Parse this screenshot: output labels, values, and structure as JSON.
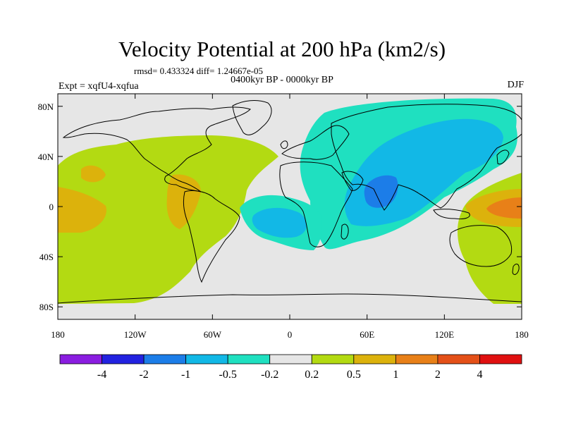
{
  "title": "Velocity Potential at 200 hPa (km2/s)",
  "stats": "rmsd= 0.433324 diff= 1.24667e-05",
  "subtitle": "0400kyr BP - 0000kyr BP",
  "left_label": "Expt = xqfU4-xqfua",
  "right_label": "DJF",
  "map": {
    "projection": "cylindrical equidistant",
    "lon_range": [
      -180,
      180
    ],
    "lat_range": [
      -90,
      90
    ],
    "lon_ticks": [
      {
        "value": -180,
        "label": "180"
      },
      {
        "value": -120,
        "label": "120W"
      },
      {
        "value": -60,
        "label": "60W"
      },
      {
        "value": 0,
        "label": "0"
      },
      {
        "value": 60,
        "label": "60E"
      },
      {
        "value": 120,
        "label": "120E"
      },
      {
        "value": 180,
        "label": "180"
      }
    ],
    "lat_ticks": [
      {
        "value": 80,
        "label": "80N"
      },
      {
        "value": 40,
        "label": "40N"
      },
      {
        "value": 0,
        "label": "0"
      },
      {
        "value": -40,
        "label": "40S"
      },
      {
        "value": -80,
        "label": "80S"
      }
    ],
    "background_color": "#e6e6e6",
    "coastline_color": "#000000"
  },
  "colorbar": {
    "colors": [
      "#8a1de0",
      "#2222e0",
      "#1c7de8",
      "#12b8e6",
      "#1fe0c0",
      "#e6e6e6",
      "#b3da12",
      "#dcb20c",
      "#e88018",
      "#e45018",
      "#e01010"
    ],
    "labels": [
      "-4",
      "-2",
      "-1",
      "-0.5",
      "-0.2",
      "0.2",
      "0.5",
      "1",
      "2",
      "4"
    ]
  }
}
